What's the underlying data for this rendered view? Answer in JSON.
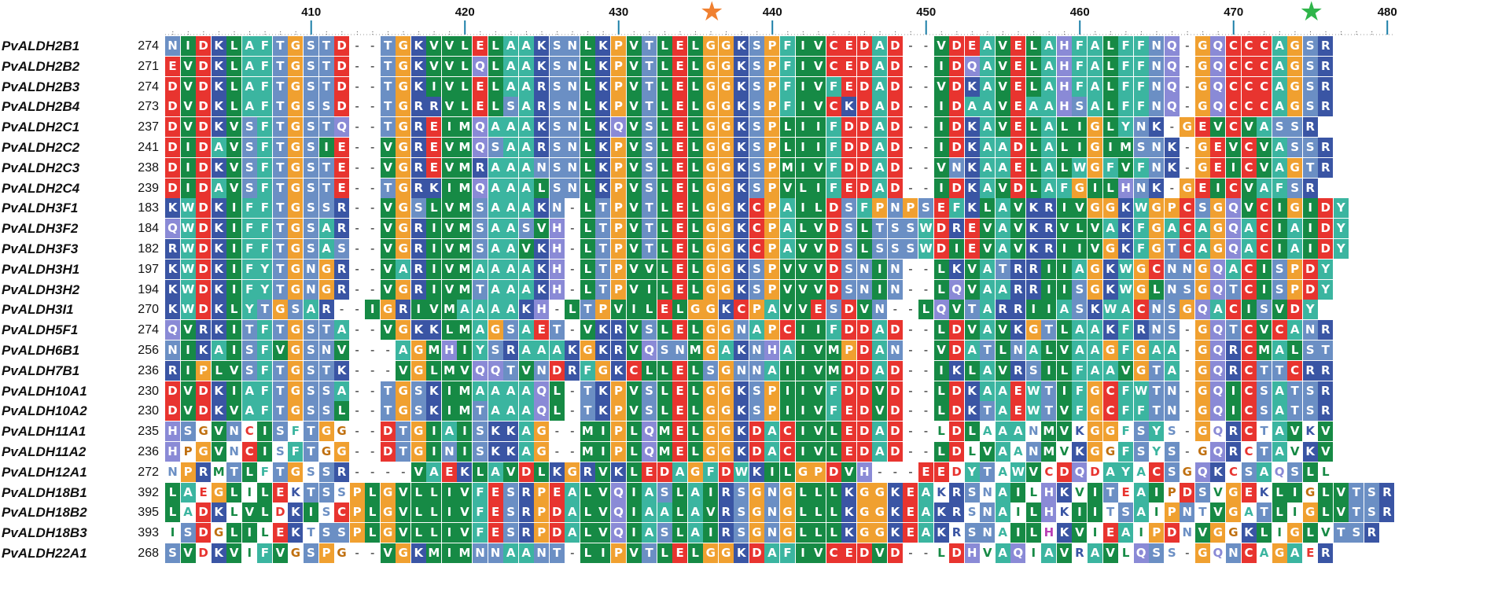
{
  "figure": {
    "ruler": {
      "start_position": 401,
      "ticks": [
        "410",
        "420",
        "430",
        "440",
        "450",
        "460",
        "470",
        "480"
      ]
    },
    "markers": [
      {
        "name": "orange-star",
        "position": 436,
        "color": "#f08030",
        "glyph": "★"
      },
      {
        "name": "green-star",
        "position": 475,
        "color": "#2fb54a",
        "glyph": "★"
      }
    ],
    "colors": {
      "red": "#e8342f",
      "blue": "#3a55a4",
      "green": "#168a45",
      "teal": "#3bb5a0",
      "orange": "#f0a030",
      "steel": "#6b8fc4",
      "lavender": "#8a8ad6",
      "magenta": "#b83fb5",
      "taupe": "#8a7a6a"
    },
    "sequences": [
      {
        "name": "PvALDH2B1",
        "start": "274",
        "seq": "NIDKLAFTGSTD--TGKVVLELAAKSNLKPVTLELGGKSPFIVCEDAD--VDEAVELAHFALFFNQ-GQCCCAGSR"
      },
      {
        "name": "PvALDH2B2",
        "start": "271",
        "seq": "EVDKLAFTGSTD--TGKVVLQLAAKSNLKPVTLELGGKSPFIVCEDAD--IDQAVELAHFALFFNQ-GQCCCAGSR"
      },
      {
        "name": "PvALDH2B3",
        "start": "274",
        "seq": "DVDKLAFTGSTD--TGKIVLELAARSNLKPVTLELGGKSPFIVFEDAD--VDKAVELAHFALFFNQ-GQCCCAGSR"
      },
      {
        "name": "PvALDH2B4",
        "start": "273",
        "seq": "DVDKLAFTGSSD--TGRRVLELSARSNLKPVTLELGGKSPFIVCKDAD--IDAAVEAAHSALFFNQ-GQCCCAGSR"
      },
      {
        "name": "PvALDH2C1",
        "start": "237",
        "seq": "DVDKVSFTGSTQ--TGREIMQAAAKSNLKQVSLELGGKSPLIIFDDAD--IDKAVELALIGLYNK-GEVCVASSR"
      },
      {
        "name": "PvALDH2C2",
        "start": "241",
        "seq": "DIDAVSFTGSIE--VGREVMQSAARSNLKPVSLELGGKSPLIIFDDAD--IDKAADLALIGIMSNK-GEVCVASSR"
      },
      {
        "name": "PvALDH2C3",
        "start": "238",
        "seq": "DIDKVSFTGSTE--VGREVMRAAANSNLKPVSLELGGKSPMIVFDDAD--VNKAAELALWGFVFNK-GEICVAGTR"
      },
      {
        "name": "PvALDH2C4",
        "start": "239",
        "seq": "DIDAVSFTGSTE--TGRKIMQAAALSNLKPVSLELGGKSPVLIFEDAD--IDKAVDLAFGILHNK-GEICVAFSR"
      },
      {
        "name": "PvALDH3F1",
        "start": "183",
        "seq": "KWDKIFFTGSSR--VGSLVMSAAAKN-LTPVTLELGGKCPAILDSFPNPSEFKLAVKRIVGGKWGPCSGQVCIGIDY"
      },
      {
        "name": "PvALDH3F2",
        "start": "184",
        "seq": "QWDKIFFTGSAR--VGRIVMSAASVH-LTPVTLELGGKCPALVDSLTSSWDREVAVKRVLVAKFGACAGQACIAIDY"
      },
      {
        "name": "PvALDH3F3",
        "start": "182",
        "seq": "RWDKIFFTGSAS--VGRIVMSAAVKH-LTPVTLELGGKCPAVVDSLSSSWDIEVAVKRIIVGKFGTCAGQACIAIDY"
      },
      {
        "name": "PvALDH3H1",
        "start": "197",
        "seq": "KWDKIFYTGNGR--VARIVMAAAAKH-LTPVVLELGGKSPVVVDSNIN--LKVATRRIIAGKWGCNNGQACISPDY"
      },
      {
        "name": "PvALDH3H2",
        "start": "194",
        "seq": "KWDKIFYTGNGR--VGRIVMTAAAKH-LTPVILELGGKSPVVVDSNIN--LQVAARRIISGKWGLNSGQTCISPDY"
      },
      {
        "name": "PvALDH3I1",
        "start": "270",
        "seq": "KWDKLYTGSAR--IGRIVMAAAAKH-LTPVILELGGKCPAVVESDVN--LQVTARRIIASKWACNSGQACISVDY"
      },
      {
        "name": "PvALDH5F1",
        "start": "274",
        "seq": "QVRKITFTGSTA--VGKKLMAGSAET-VKRVSLELGGNAPCIIFDDAD--LDVAVKGTLAAKFRNS-GQTCVCANR"
      },
      {
        "name": "PvALDH6B1",
        "start": "256",
        "seq": "NIKAISFVGSNV---AGMHIYSRAAAKGKRVQSNMGAKNHAIVMPDAN--VDATLNALVAAGFGAA-GQRCMALST"
      },
      {
        "name": "PvALDH7B1",
        "start": "236",
        "seq": "RIPLVSFTGSTK---VGLMVQQTVNDRFGKCLLELSGNNAIIVMDDAD--IKLAVRSILFAAVGTA-GQRCTTCRR"
      },
      {
        "name": "PvALDH10A1",
        "start": "230",
        "seq": "DVDKIAFTGSSA--TGSKIMAAAAQL-TKPVSLELGGKSPIIVFDDVD--LDKAAEWTIFGCFWTN-GQICSATSR"
      },
      {
        "name": "PvALDH10A2",
        "start": "230",
        "seq": "DVDKVAFTGSSL--TGSKIMTAAAQL-TKPVSLELGGKSPIIVFEDVD--LDKTAEWTVFGCFFTN-GQICSATSR"
      },
      {
        "name": "PvALDH11A1",
        "start": "235",
        "seq": "HSGVNCISFTGG--DTGIAISKKAG--MIPLQMELGGKDACIVLEDAD--LDLAAANMVKGGFSYS-GQRCTAVKV"
      },
      {
        "name": "PvALDH11A2",
        "start": "236",
        "seq": "HPGVNCISFTGG--DTGINISKKAG--MIPLQMELGGKDACIVLEDAD--LDLVAANMVKGGFSYS-GQRCTAVKV"
      },
      {
        "name": "PvALDH12A1",
        "start": "272",
        "seq": "NPRMTLFTGSSR----VAEKLAVDLKGRVKLEDAGFDWKILGPDVH---EEDYTAWVCDQDAYACSGQKCSAQSLL"
      },
      {
        "name": "PvALDH18B1",
        "start": "392",
        "seq": "LAEGLILEKTSSPLGVLLIVFESRPEALVQIASLAIRSGNGLLLKGGKEAKRSNAILHKVITEAIPDSVGEKLIGLVTSR"
      },
      {
        "name": "PvALDH18B2",
        "start": "395",
        "seq": "LADKLVLDKISCPLGVLLIVFESRPDALVQIAALAVRSGNGLLLKGGKEAKRSNAILHKIITSAIPNTVGATLIGLVTSR"
      },
      {
        "name": "PvALDH18B3",
        "start": "393",
        "seq": "ISDGLILEKTSSPLGVLLIVFESRPDALVQIASLAIRSGNGLLLKGGKEAKRSNAILHKVIEAIPDNVGGKLIGLVTSR"
      },
      {
        "name": "PvALDH22A1",
        "start": "268",
        "seq": "SVDKVIFVGSPG--VGKMIMNNAANT-LIPVTLELGGKDAFIVCEDVD--LDHVAQIAVRAVLQSS-GQNCAGAER"
      }
    ]
  }
}
